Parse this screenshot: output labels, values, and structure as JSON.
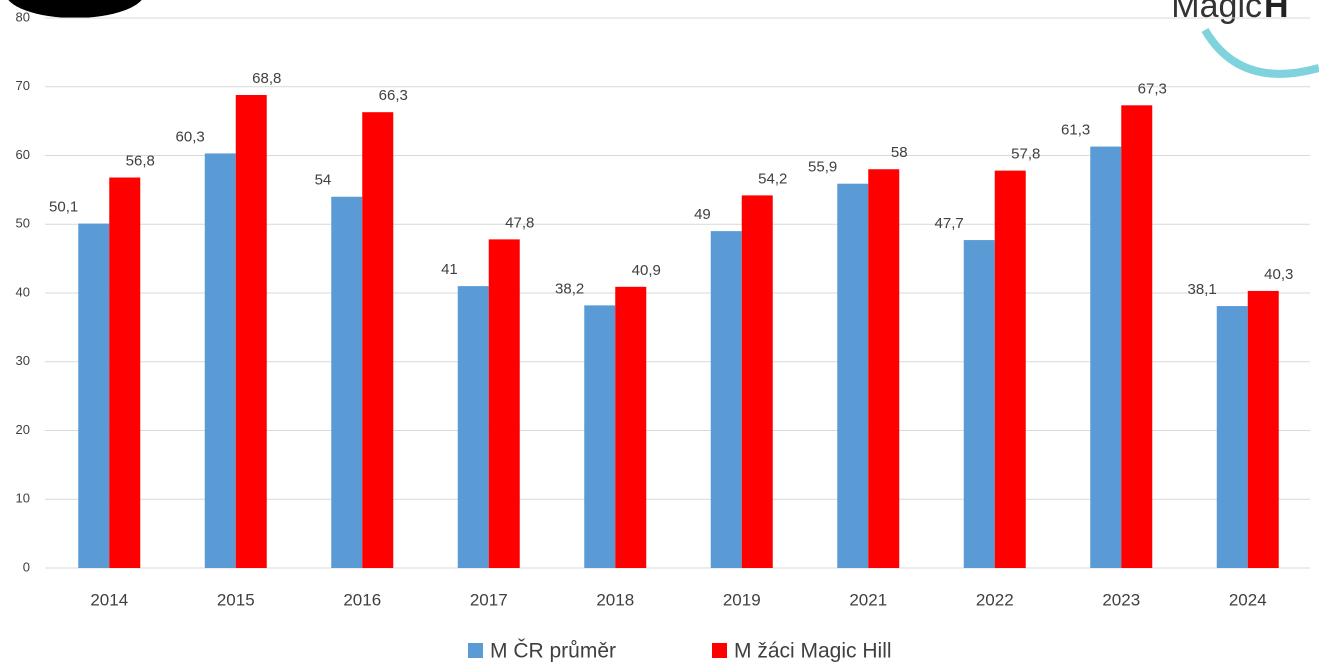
{
  "chart_data": {
    "type": "bar",
    "categories": [
      "2014",
      "2015",
      "2016",
      "2017",
      "2018",
      "2019",
      "2021",
      "2022",
      "2023",
      "2024"
    ],
    "series": [
      {
        "name": "M ČR průměr",
        "color": "#5b9bd5",
        "values": [
          50.1,
          60.3,
          54,
          41,
          38.2,
          49,
          55.9,
          47.7,
          61.3,
          38.1
        ],
        "value_labels": [
          "50,1",
          "60,3",
          "54",
          "41",
          "38,2",
          "49",
          "55,9",
          "47,7",
          "61,3",
          "38,1"
        ]
      },
      {
        "name": "M žáci Magic Hill",
        "color": "#ff0000",
        "values": [
          56.8,
          68.8,
          66.3,
          47.8,
          40.9,
          54.2,
          58,
          57.8,
          67.3,
          40.3
        ],
        "value_labels": [
          "56,8",
          "68,8",
          "66,3",
          "47,8",
          "40,9",
          "54,2",
          "58",
          "57,8",
          "67,3",
          "40,3"
        ]
      }
    ],
    "ylim": [
      0,
      80
    ],
    "yticks": [
      0,
      10,
      20,
      30,
      40,
      50,
      60,
      70,
      80
    ],
    "grid": true,
    "legend": "bottom",
    "logo": {
      "text": "Magic",
      "bold": "H"
    }
  }
}
